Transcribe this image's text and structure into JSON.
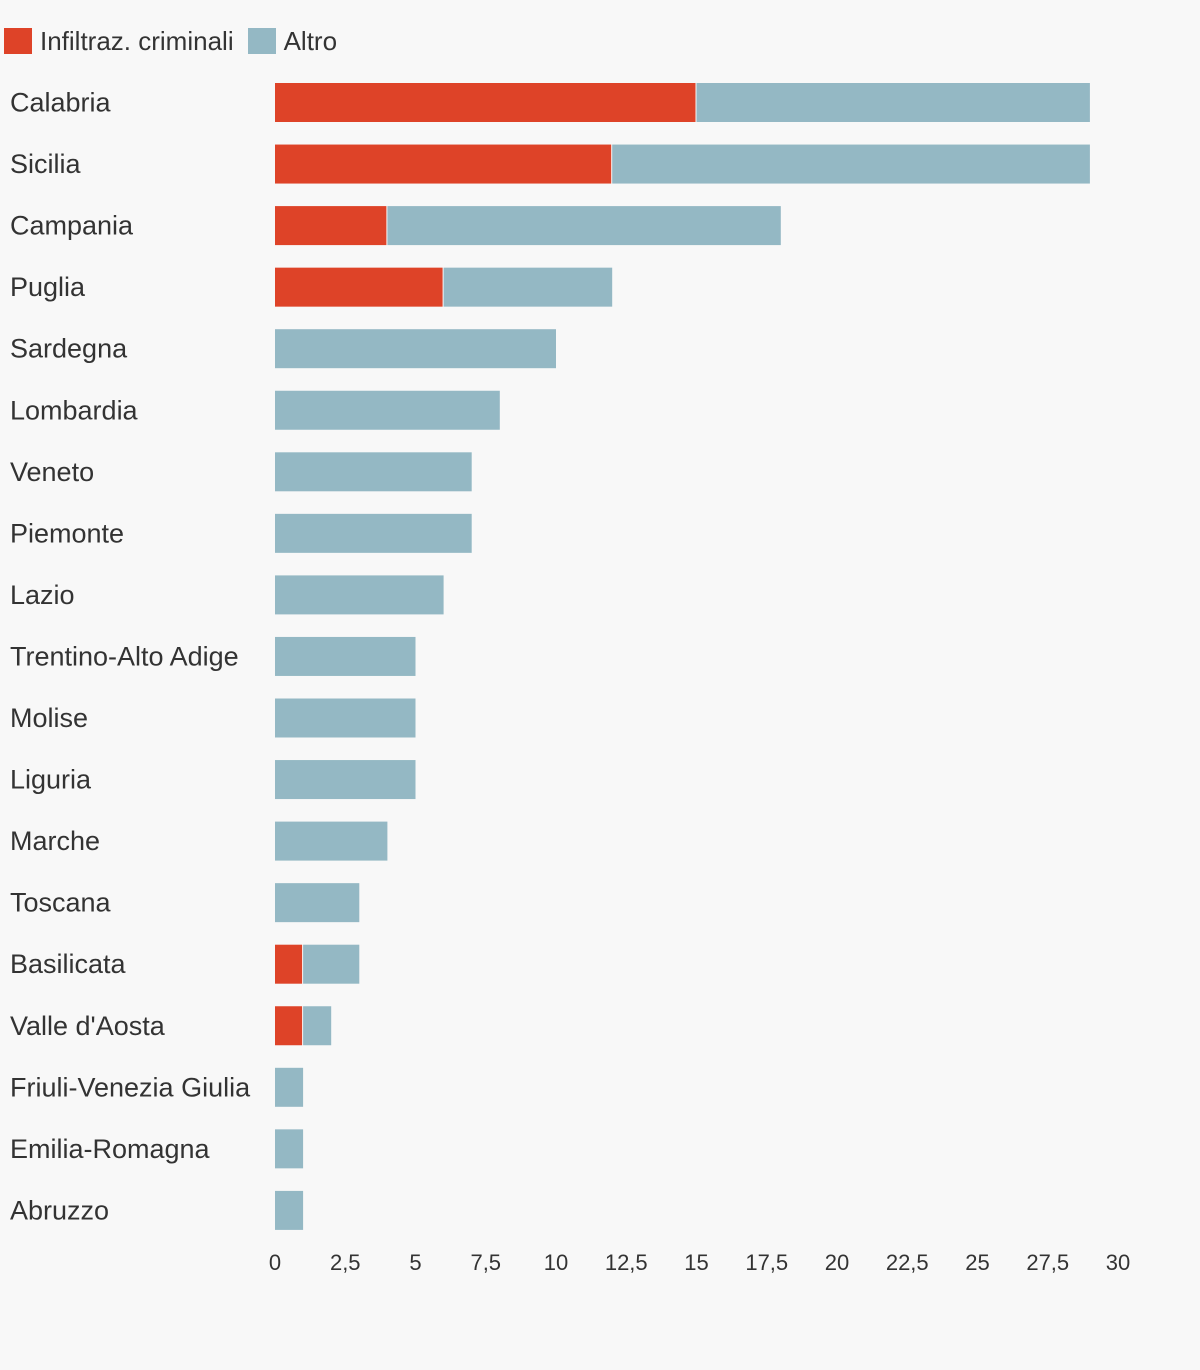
{
  "chart_data": {
    "type": "bar",
    "orientation": "horizontal",
    "stacked": true,
    "categories": [
      "Calabria",
      "Sicilia",
      "Campania",
      "Puglia",
      "Sardegna",
      "Lombardia",
      "Veneto",
      "Piemonte",
      "Lazio",
      "Trentino-Alto Adige",
      "Molise",
      "Liguria",
      "Marche",
      "Toscana",
      "Basilicata",
      "Valle d'Aosta",
      "Friuli-Venezia Giulia",
      "Emilia-Romagna",
      "Abruzzo"
    ],
    "series": [
      {
        "name": "Infiltraz. criminali",
        "color": "#de4328",
        "values": [
          15,
          12,
          4,
          6,
          0,
          0,
          0,
          0,
          0,
          0,
          0,
          0,
          0,
          0,
          1,
          1,
          0,
          0,
          0
        ]
      },
      {
        "name": "Altro",
        "color": "#94b8c4",
        "values": [
          14,
          17,
          14,
          6,
          10,
          8,
          7,
          7,
          6,
          5,
          5,
          5,
          4,
          3,
          2,
          1,
          1,
          1,
          1
        ]
      }
    ],
    "xlim": [
      0,
      30
    ],
    "x_ticks": [
      "0",
      "2,5",
      "5",
      "7,5",
      "10",
      "12,5",
      "15",
      "17,5",
      "20",
      "22,5",
      "25",
      "27,5",
      "30"
    ],
    "x_tick_values": [
      0,
      2.5,
      5,
      7.5,
      10,
      12.5,
      15,
      17.5,
      20,
      22.5,
      25,
      27.5,
      30
    ],
    "legend_position": "top-left",
    "grid": false,
    "title": "",
    "xlabel": "",
    "ylabel": ""
  }
}
